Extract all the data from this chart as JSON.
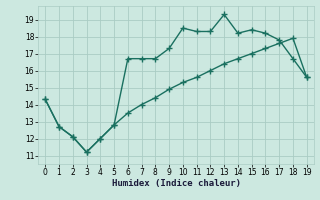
{
  "xlabel": "Humidex (Indice chaleur)",
  "ylabel": "",
  "background_color": "#cce8e0",
  "grid_color": "#aaccC4",
  "line_color": "#1a7060",
  "xlim": [
    -0.5,
    19.5
  ],
  "ylim": [
    10.5,
    19.8
  ],
  "xticks": [
    0,
    1,
    2,
    3,
    4,
    5,
    6,
    7,
    8,
    9,
    10,
    11,
    12,
    13,
    14,
    15,
    16,
    17,
    18,
    19
  ],
  "yticks": [
    11,
    12,
    13,
    14,
    15,
    16,
    17,
    18,
    19
  ],
  "line1_x": [
    0,
    1,
    2,
    3,
    4,
    5,
    6,
    7,
    8,
    9,
    10,
    11,
    12,
    13,
    14,
    15,
    16,
    17,
    18,
    19
  ],
  "line1_y": [
    14.3,
    12.7,
    12.1,
    11.2,
    12.0,
    12.8,
    16.7,
    16.7,
    16.7,
    17.3,
    18.5,
    18.3,
    18.3,
    19.3,
    18.2,
    18.4,
    18.2,
    17.8,
    16.7,
    15.6
  ],
  "line2_x": [
    0,
    1,
    2,
    3,
    4,
    5,
    6,
    7,
    8,
    9,
    10,
    11,
    12,
    13,
    14,
    15,
    16,
    17,
    18,
    19
  ],
  "line2_y": [
    14.3,
    12.7,
    12.1,
    11.2,
    12.0,
    12.8,
    13.5,
    14.0,
    14.4,
    14.9,
    15.3,
    15.6,
    16.0,
    16.4,
    16.7,
    17.0,
    17.3,
    17.6,
    17.9,
    15.6
  ],
  "marker": "+",
  "markersize": 4,
  "linewidth": 1.0,
  "tick_fontsize": 5.5,
  "xlabel_fontsize": 6.5
}
